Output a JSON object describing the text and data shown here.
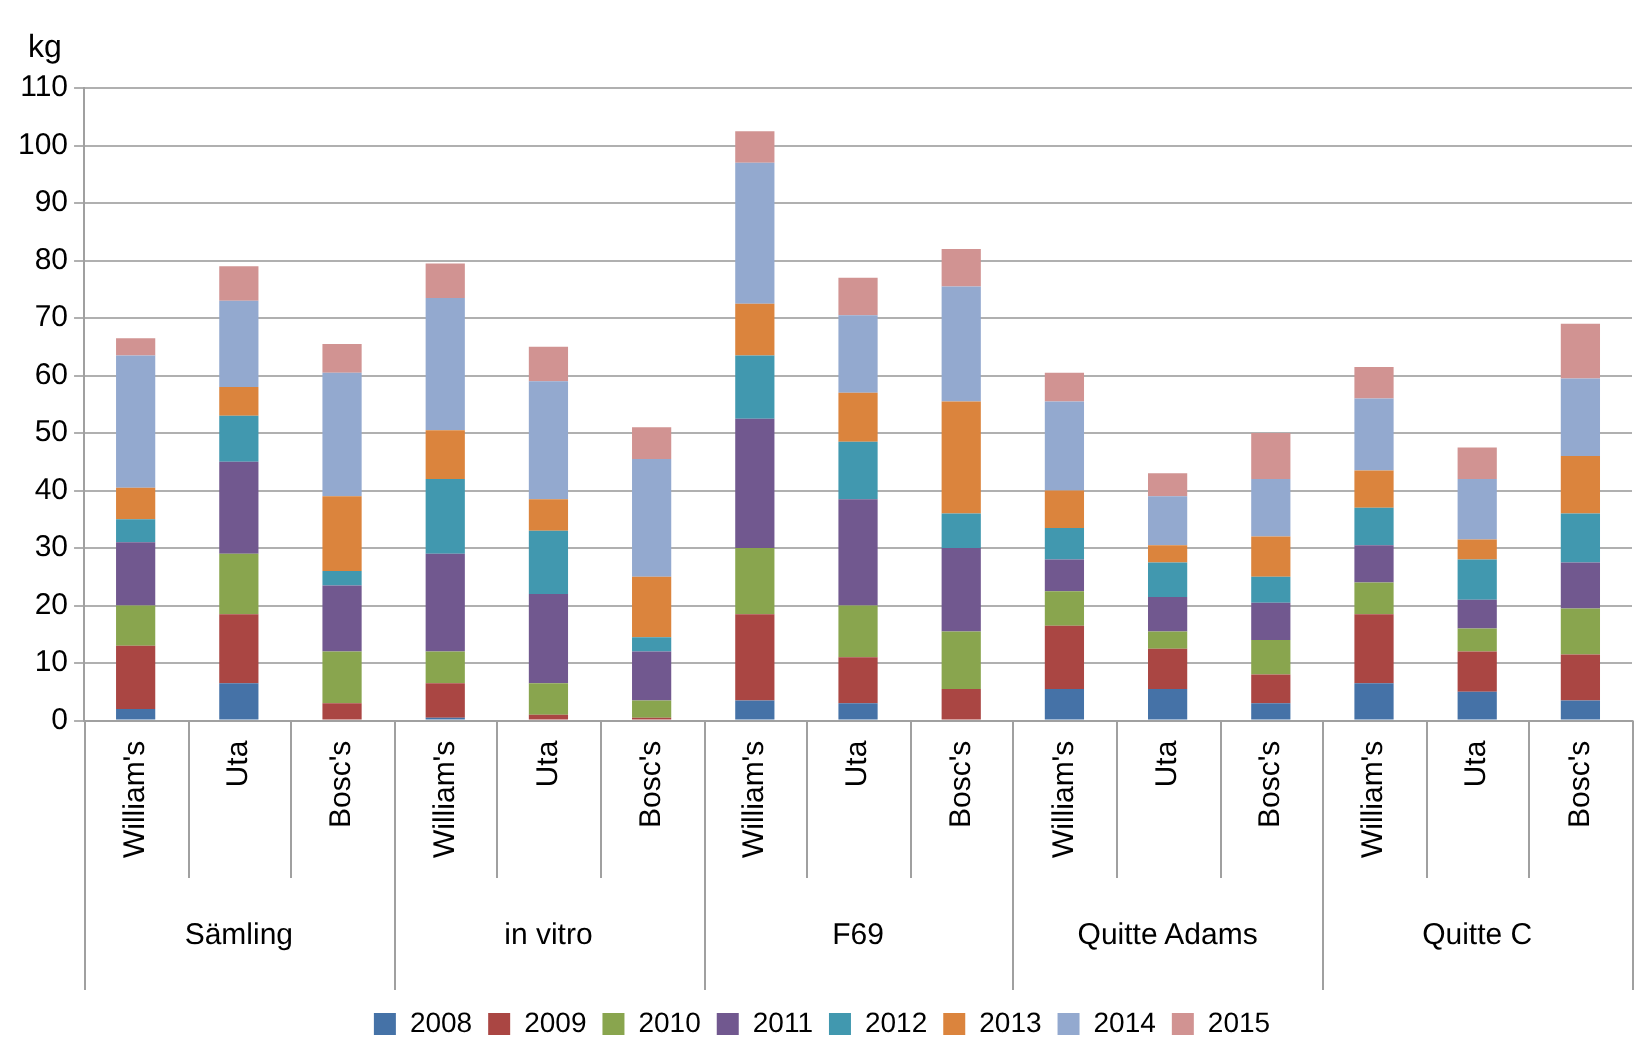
{
  "chart_data": {
    "type": "bar",
    "stacked": true,
    "ylabel": "kg",
    "categories": [
      "William's",
      "Uta",
      "Bosc's",
      "William's",
      "Uta",
      "Bosc's",
      "William's",
      "Uta",
      "Bosc's",
      "William's",
      "Uta",
      "Bosc's",
      "William's",
      "Uta",
      "Bosc's"
    ],
    "annotations": [
      "Sämling",
      "in vitro",
      "F69",
      "Quitte Adams",
      "Quitte C"
    ],
    "series": [
      {
        "name": "2008",
        "color": "#4572a7",
        "values": [
          2,
          6.5,
          0,
          0.5,
          0,
          0,
          3.5,
          3,
          0,
          5.5,
          5.5,
          3,
          6.5,
          5,
          3.5
        ]
      },
      {
        "name": "2009",
        "color": "#aa4643",
        "values": [
          11,
          12,
          3,
          6,
          1,
          0.5,
          15,
          8,
          5.5,
          11,
          7,
          5,
          12,
          7,
          8
        ]
      },
      {
        "name": "2010",
        "color": "#89a54e",
        "values": [
          7,
          10.5,
          9,
          5.5,
          5.5,
          3,
          11.5,
          9,
          10,
          6,
          3,
          6,
          5.5,
          4,
          8
        ]
      },
      {
        "name": "2011",
        "color": "#71588f",
        "values": [
          11,
          16,
          11.5,
          17,
          15.5,
          8.5,
          22.5,
          18.5,
          14.5,
          5.5,
          6,
          6.5,
          6.5,
          5,
          8
        ]
      },
      {
        "name": "2012",
        "color": "#4198af",
        "values": [
          4,
          8,
          2.5,
          13,
          11,
          2.5,
          11,
          10,
          6,
          5.5,
          6,
          4.5,
          6.5,
          7,
          8.5
        ]
      },
      {
        "name": "2013",
        "color": "#db843d",
        "values": [
          5.5,
          5,
          13,
          8.5,
          5.5,
          10.5,
          9,
          8.5,
          19.5,
          6.5,
          3,
          7,
          6.5,
          3.5,
          10
        ]
      },
      {
        "name": "2014",
        "color": "#93a9cf",
        "values": [
          23,
          15,
          21.5,
          23,
          20.5,
          20.5,
          24.5,
          13.5,
          20,
          15.5,
          8.5,
          10,
          12.5,
          10.5,
          13.5
        ]
      },
      {
        "name": "2015",
        "color": "#d19392",
        "values": [
          3,
          6,
          5,
          6,
          6,
          5.5,
          5.5,
          6.5,
          6.5,
          5,
          4,
          8,
          5.5,
          5.5,
          9.5
        ]
      }
    ],
    "ylim": [
      0,
      110
    ],
    "yticks": [
      0,
      10,
      20,
      30,
      40,
      50,
      60,
      70,
      80,
      90,
      100,
      110
    ],
    "grid": "y",
    "legend": "bottom"
  }
}
